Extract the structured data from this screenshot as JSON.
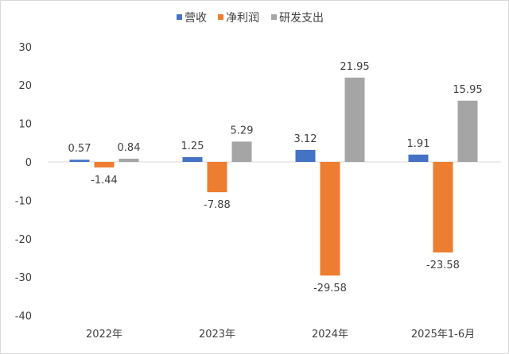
{
  "chart_data": {
    "type": "bar",
    "categories": [
      "2022年",
      "2023年",
      "2024年",
      "2025年1-6月"
    ],
    "series": [
      {
        "name": "营收",
        "color": "#4472C4",
        "values": [
          0.57,
          1.25,
          3.12,
          1.91
        ]
      },
      {
        "name": "净利润",
        "color": "#ED7D31",
        "values": [
          -1.44,
          -7.88,
          -29.58,
          -23.58
        ]
      },
      {
        "name": "研发支出",
        "color": "#A5A5A5",
        "values": [
          0.84,
          5.29,
          21.95,
          15.95
        ]
      }
    ],
    "ylim": [
      -40,
      30
    ],
    "yticks": [
      30,
      20,
      10,
      0,
      -10,
      -20,
      -30,
      -40
    ],
    "grid": false,
    "legend_position": "top",
    "data_labels": true
  }
}
